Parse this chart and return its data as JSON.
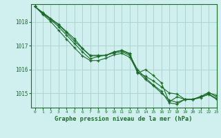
{
  "background_color": "#cff0ee",
  "grid_color": "#b0d4d0",
  "line_color": "#1a6b2a",
  "title": "Graphe pression niveau de la mer (hPa)",
  "xlim": [
    -0.5,
    23
  ],
  "ylim": [
    1014.4,
    1018.75
  ],
  "yticks": [
    1015,
    1016,
    1017,
    1018
  ],
  "xticks": [
    0,
    1,
    2,
    3,
    4,
    5,
    6,
    7,
    8,
    9,
    10,
    11,
    12,
    13,
    14,
    15,
    16,
    17,
    18,
    19,
    20,
    21,
    22,
    23
  ],
  "series": [
    [
      1018.65,
      1018.4,
      1018.15,
      1017.9,
      1017.6,
      1017.3,
      1016.9,
      1016.6,
      1016.6,
      1016.6,
      1016.75,
      1016.8,
      1016.65,
      1015.85,
      1016.0,
      1015.75,
      1015.45,
      1014.65,
      1014.85,
      1014.75,
      1014.75,
      1014.85,
      1015.05,
      1014.85
    ],
    [
      1018.65,
      1018.35,
      1018.1,
      1017.8,
      1017.45,
      1017.1,
      1016.75,
      1016.45,
      1016.55,
      1016.6,
      1016.7,
      1016.75,
      1016.6,
      1016.0,
      1015.65,
      1015.35,
      1015.1,
      1014.6,
      1014.55,
      1014.75,
      1014.75,
      1014.85,
      1014.95,
      1014.75
    ],
    [
      1018.65,
      1018.38,
      1018.12,
      1017.88,
      1017.55,
      1017.2,
      1016.88,
      1016.58,
      1016.58,
      1016.6,
      1016.72,
      1016.82,
      1016.68,
      1015.88,
      1015.72,
      1015.52,
      1015.28,
      1015.02,
      1014.97,
      1014.75,
      1014.75,
      1014.88,
      1015.02,
      1014.92
    ],
    [
      1018.65,
      1018.32,
      1018.02,
      1017.65,
      1017.28,
      1016.92,
      1016.58,
      1016.38,
      1016.38,
      1016.48,
      1016.62,
      1016.68,
      1016.52,
      1015.92,
      1015.58,
      1015.32,
      1015.02,
      1014.72,
      1014.62,
      1014.75,
      1014.75,
      1014.82,
      1014.98,
      1014.78
    ]
  ]
}
